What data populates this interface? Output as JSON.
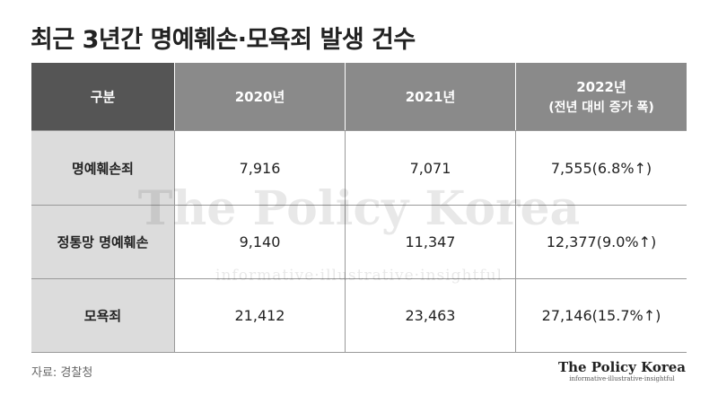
{
  "title": "최근 3년간 명예훼손·모욕죄 발생 건수",
  "table": {
    "header": [
      "구분",
      "2020년",
      "2021년",
      "2022년"
    ],
    "header_note": "(전년 대비 증가 폭)",
    "rows": [
      [
        "명예훼손죄",
        "7,916",
        "7,071",
        "7,555(6.8%↑)"
      ],
      [
        "정통망 명예훼손",
        "9,140",
        "11,347",
        "12,377(9.0%↑)"
      ],
      [
        "모욕죄",
        "21,412",
        "23,463",
        "27,146(15.7%↑)"
      ]
    ]
  },
  "source": "자료: 경찰청",
  "brand": {
    "name": "The Policy Korea",
    "tagline": "informative·illustrative·insightful"
  }
}
